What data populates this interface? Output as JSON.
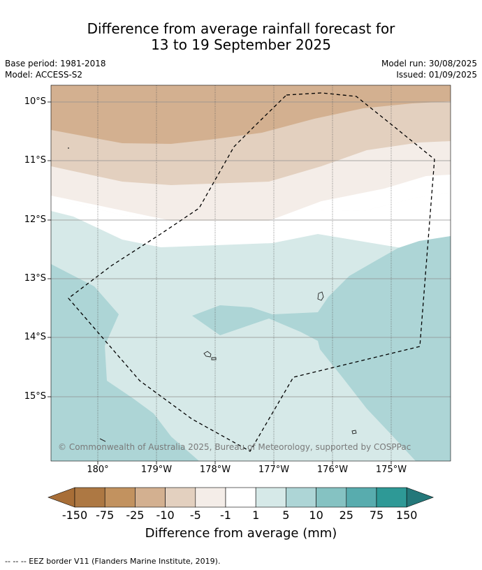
{
  "title": {
    "line1": "Difference from average rainfall forecast for",
    "line2": "13 to 19 September 2025"
  },
  "meta": {
    "base_period": "Base period: 1981-2018",
    "model": "Model: ACCESS-S2",
    "model_run": "Model run: 30/08/2025",
    "issued": "Issued: 01/09/2025"
  },
  "map": {
    "lat_labels": [
      "10°S",
      "11°S",
      "12°S",
      "13°S",
      "14°S",
      "15°S"
    ],
    "lon_labels": [
      "180°",
      "179°W",
      "178°W",
      "177°W",
      "176°W",
      "175°W"
    ],
    "copyright": "© Commonwealth of Australia 2025, Bureau of Meteorology, supported by COSPPac"
  },
  "legend": {
    "title": "Difference from average (mm)",
    "ticks": [
      "-150",
      "-75",
      "-25",
      "-10",
      "-5",
      "-1",
      "1",
      "5",
      "10",
      "25",
      "75",
      "150"
    ],
    "colors": [
      "#a86e37",
      "#ad7843",
      "#c2925f",
      "#d3b090",
      "#e3d0bf",
      "#f4ede8",
      "#ffffff",
      "#d6e9e8",
      "#add5d6",
      "#85c2c2",
      "#58acae",
      "#2e9996",
      "#24787a"
    ]
  },
  "footer": "--  --  -- EEZ border V11 (Flanders Marine Institute, 2019)."
}
